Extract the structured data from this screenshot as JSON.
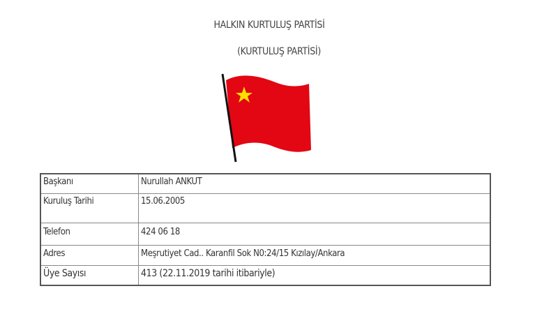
{
  "header": {
    "title": "HALKIN KURTULUŞ PARTİSİ",
    "subtitle": "(KURTULUŞ PARTİSİ)"
  },
  "flag": {
    "icon": "red-flag-with-yellow-star",
    "flag_color": "#e30613",
    "star_color": "#ffe000"
  },
  "table": {
    "rows": [
      {
        "label": "Başkanı",
        "value": "Nurullah ANKUT"
      },
      {
        "label": "Kuruluş Tarihi",
        "value": "15.06.2005"
      },
      {
        "label": "Telefon",
        "value": "424 06 18"
      },
      {
        "label": "Adres",
        "value": "Meşrutiyet Cad.. Karanfil Sok N0:24/15 Kızılay/Ankara"
      },
      {
        "label": "Üye Sayısı",
        "value": "413 (22.11.2019 tarihi itibariyle)"
      }
    ]
  }
}
